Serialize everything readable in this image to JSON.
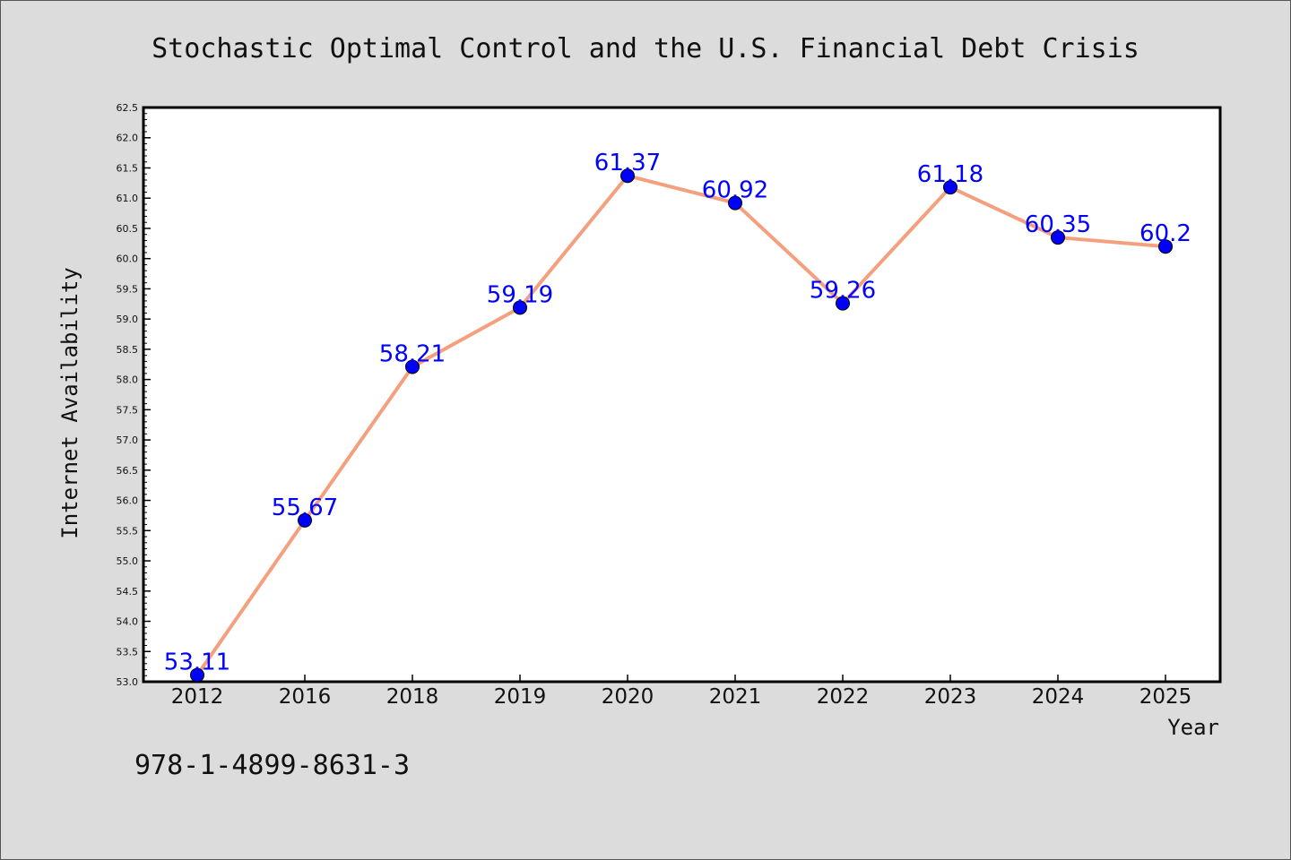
{
  "chart_data": {
    "type": "line",
    "title": "Stochastic Optimal Control and the U.S. Financial Debt Crisis",
    "xlabel": "Year",
    "ylabel": "Internet Availability",
    "categories": [
      "2012",
      "2016",
      "2018",
      "2019",
      "2020",
      "2021",
      "2022",
      "2023",
      "2024",
      "2025"
    ],
    "values": [
      53.11,
      55.67,
      58.21,
      59.19,
      61.37,
      60.92,
      59.26,
      61.18,
      60.35,
      60.2
    ],
    "data_labels": [
      "53.11",
      "55.67",
      "58.21",
      "59.19",
      "61.37",
      "60.92",
      "59.26",
      "61.18",
      "60.35",
      "60.2"
    ],
    "ylim": [
      53.0,
      62.5
    ],
    "yticks": [
      "53.0",
      "53.5",
      "54.0",
      "54.5",
      "55.0",
      "55.5",
      "56.0",
      "56.5",
      "57.0",
      "57.5",
      "58.0",
      "58.5",
      "59.0",
      "59.5",
      "60.0",
      "60.5",
      "61.0",
      "61.5",
      "62.0",
      "62.5"
    ],
    "grid": false,
    "line_color": "#f4a07f",
    "marker_color": "#0000ff",
    "label_color": "#0000ff",
    "background_color": "#dcdcdc",
    "plot_background": "#ffffff"
  },
  "footer_text": "978-1-4899-8631-3"
}
